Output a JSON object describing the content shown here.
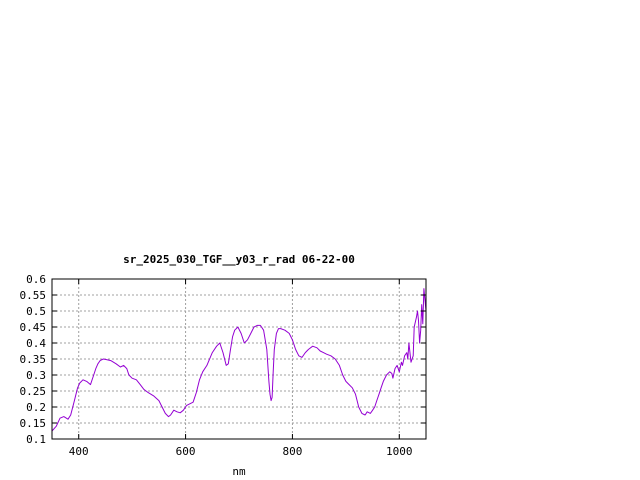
{
  "chart_data": {
    "type": "line",
    "title": "sr_2025_030_TGF__y03_r_rad 06-22-00",
    "xlabel": "nm",
    "ylabel": "",
    "xlim": [
      350,
      1050
    ],
    "ylim": [
      0.1,
      0.6
    ],
    "x_ticks": [
      400,
      600,
      800,
      1000
    ],
    "y_ticks": [
      0.1,
      0.15,
      0.2,
      0.25,
      0.3,
      0.35,
      0.4,
      0.45,
      0.5,
      0.55,
      0.6
    ],
    "x_tick_labels": [
      "400",
      "600",
      "800",
      "1000"
    ],
    "y_tick_labels": [
      "0.1",
      "0.15",
      "0.2",
      "0.25",
      "0.3",
      "0.35",
      "0.4",
      "0.45",
      "0.5",
      "0.55",
      "0.6"
    ],
    "grid": true,
    "legend": "none",
    "series": [
      {
        "color": "#9400d3",
        "x": [
          350,
          358,
          365,
          372,
          380,
          385,
          392,
          398,
          402,
          408,
          415,
          422,
          428,
          432,
          436,
          440,
          446,
          452,
          460,
          470,
          478,
          484,
          490,
          494,
          500,
          508,
          515,
          522,
          530,
          540,
          550,
          556,
          562,
          568,
          572,
          578,
          584,
          590,
          596,
          602,
          608,
          614,
          620,
          626,
          632,
          640,
          650,
          658,
          664,
          670,
          676,
          680,
          684,
          688,
          692,
          698,
          704,
          710,
          716,
          722,
          728,
          734,
          740,
          746,
          752,
          756,
          758,
          760,
          762,
          764,
          766,
          770,
          774,
          778,
          786,
          794,
          800,
          806,
          812,
          818,
          824,
          830,
          838,
          846,
          852,
          858,
          864,
          872,
          880,
          888,
          894,
          900,
          906,
          912,
          918,
          924,
          930,
          936,
          940,
          946,
          950,
          954,
          958,
          962,
          966,
          970,
          976,
          982,
          986,
          988,
          992,
          996,
          1000,
          1004,
          1006,
          1010,
          1014,
          1016,
          1018,
          1022,
          1026,
          1028,
          1032,
          1034,
          1036,
          1038,
          1040,
          1042,
          1044,
          1046,
          1050
        ],
        "y": [
          0.125,
          0.14,
          0.165,
          0.17,
          0.162,
          0.175,
          0.22,
          0.26,
          0.275,
          0.285,
          0.28,
          0.27,
          0.3,
          0.32,
          0.335,
          0.345,
          0.35,
          0.348,
          0.345,
          0.335,
          0.325,
          0.33,
          0.32,
          0.3,
          0.29,
          0.285,
          0.27,
          0.255,
          0.245,
          0.235,
          0.22,
          0.2,
          0.18,
          0.17,
          0.175,
          0.19,
          0.185,
          0.182,
          0.19,
          0.205,
          0.21,
          0.215,
          0.245,
          0.285,
          0.31,
          0.33,
          0.37,
          0.39,
          0.4,
          0.37,
          0.33,
          0.335,
          0.38,
          0.42,
          0.44,
          0.45,
          0.43,
          0.4,
          0.41,
          0.43,
          0.45,
          0.455,
          0.455,
          0.44,
          0.38,
          0.28,
          0.24,
          0.22,
          0.23,
          0.31,
          0.38,
          0.43,
          0.445,
          0.445,
          0.44,
          0.43,
          0.41,
          0.38,
          0.36,
          0.355,
          0.37,
          0.38,
          0.39,
          0.385,
          0.375,
          0.37,
          0.365,
          0.36,
          0.35,
          0.33,
          0.3,
          0.28,
          0.27,
          0.26,
          0.24,
          0.2,
          0.18,
          0.175,
          0.185,
          0.18,
          0.19,
          0.2,
          0.22,
          0.24,
          0.26,
          0.28,
          0.3,
          0.31,
          0.305,
          0.29,
          0.32,
          0.33,
          0.31,
          0.34,
          0.33,
          0.36,
          0.37,
          0.35,
          0.4,
          0.34,
          0.36,
          0.45,
          0.48,
          0.5,
          0.47,
          0.4,
          0.44,
          0.52,
          0.46,
          0.57,
          0.5
        ]
      }
    ]
  }
}
